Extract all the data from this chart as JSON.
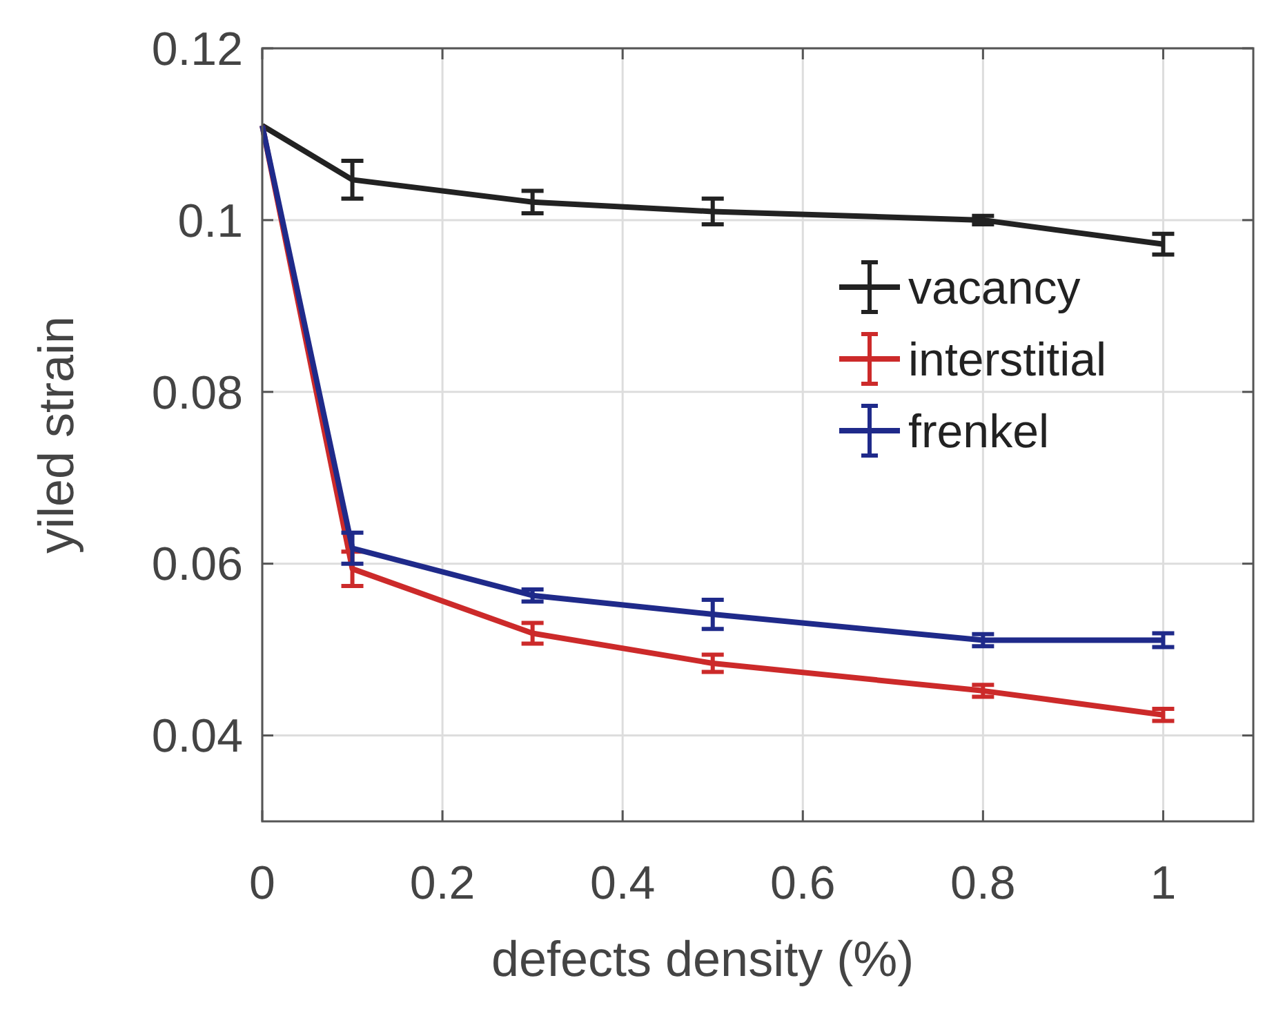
{
  "chart_data": {
    "type": "line",
    "xlabel": "defects density (%)",
    "ylabel": "yiled strain",
    "x": [
      0,
      0.1,
      0.3,
      0.5,
      0.8,
      1
    ],
    "series": [
      {
        "name": "vacancy",
        "color": "#222222",
        "values": [
          0.111,
          0.1047,
          0.1021,
          0.101,
          0.1,
          0.0972
        ],
        "errors": [
          null,
          0.0022,
          0.0013,
          0.0015,
          0.0005,
          0.0012
        ]
      },
      {
        "name": "interstitial",
        "color": "#cc2a2a",
        "values": [
          0.111,
          0.0594,
          0.0519,
          0.0484,
          0.0452,
          0.0424
        ],
        "errors": [
          null,
          0.002,
          0.0012,
          0.001,
          0.0007,
          0.0007
        ]
      },
      {
        "name": "frenkel",
        "color": "#1f2a8a",
        "values": [
          0.111,
          0.0618,
          0.0563,
          0.0541,
          0.0511,
          0.0511
        ],
        "errors": [
          null,
          0.0018,
          0.0007,
          0.0017,
          0.0007,
          0.0008
        ]
      }
    ],
    "xlim": [
      0,
      1.1
    ],
    "xticks": [
      0,
      0.2,
      0.4,
      0.6,
      0.8,
      1
    ],
    "ylim": [
      0.03,
      0.12
    ],
    "yticks": [
      0.04,
      0.06,
      0.08,
      0.1,
      0.12
    ],
    "grid": true,
    "legend": "right",
    "marker": "none",
    "line_style": "solid"
  }
}
